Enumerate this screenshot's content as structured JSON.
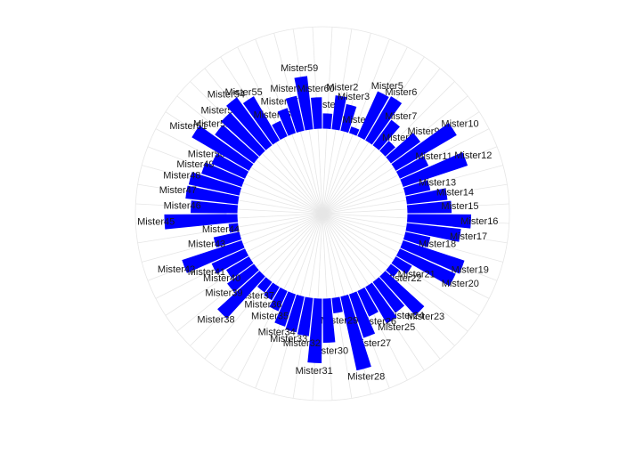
{
  "chart_data": {
    "type": "circular-bar",
    "categories": [
      "Mister1",
      "Mister2",
      "Mister3",
      "Mister4",
      "Mister5",
      "Mister6",
      "Mister7",
      "Mister8",
      "Mister9",
      "Mister10",
      "Mister11",
      "Mister12",
      "Mister13",
      "Mister14",
      "Mister15",
      "Mister16",
      "Mister17",
      "Mister18",
      "Mister19",
      "Mister20",
      "Mister21",
      "Mister22",
      "Mister23",
      "Mister24",
      "Mister25",
      "Mister26",
      "Mister27",
      "Mister28",
      "Mister29",
      "Mister30",
      "Mister31",
      "Mister32",
      "Mister33",
      "Mister34",
      "Mister35",
      "Mister36",
      "Mister37",
      "Mister38",
      "Mister39",
      "Mister40",
      "Mister41",
      "Mister42",
      "Mister43",
      "Mister44",
      "Mister45",
      "Mister46",
      "Mister47",
      "Mister48",
      "Mister49",
      "Mister50",
      "Mister51",
      "Mister52",
      "Mister53",
      "Mister54",
      "Mister55",
      "Mister56",
      "Mister57",
      "Mister58",
      "Mister59",
      "Mister60"
    ],
    "values": [
      18,
      40,
      32,
      8,
      58,
      60,
      37,
      16,
      43,
      83,
      37,
      80,
      30,
      48,
      52,
      75,
      64,
      30,
      76,
      72,
      22,
      12,
      62,
      45,
      50,
      33,
      54,
      89,
      18,
      52,
      76,
      45,
      43,
      40,
      26,
      18,
      15,
      67,
      39,
      31,
      43,
      74,
      31,
      11,
      86,
      55,
      62,
      61,
      50,
      43,
      78,
      57,
      61,
      70,
      60,
      20,
      31,
      42,
      63,
      37
    ],
    "color": "#0000ff",
    "ylim": [
      -100,
      120
    ],
    "grid": true
  }
}
